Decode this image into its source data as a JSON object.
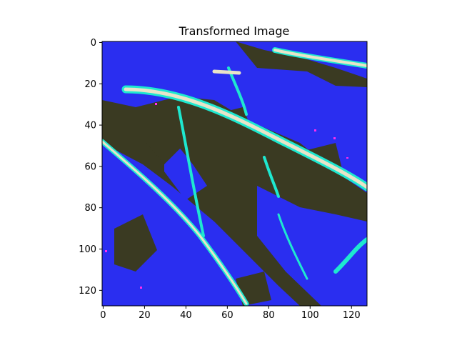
{
  "chart_data": {
    "type": "heatmap",
    "title": "Transformed Image",
    "xlabel": "",
    "ylabel": "",
    "xlim": [
      0,
      128
    ],
    "ylim": [
      128,
      0
    ],
    "x_ticks": [
      0,
      20,
      40,
      60,
      80,
      100,
      120
    ],
    "y_ticks": [
      0,
      20,
      40,
      60,
      80,
      100,
      120
    ],
    "grid": false,
    "colors": {
      "background": "#3a3a22",
      "overlay_blue": "#2a2ef0",
      "vein_light": "#e8e4c8",
      "vein_cyan": "#1ee8d0",
      "speck_magenta": "#ff2cf0"
    }
  }
}
